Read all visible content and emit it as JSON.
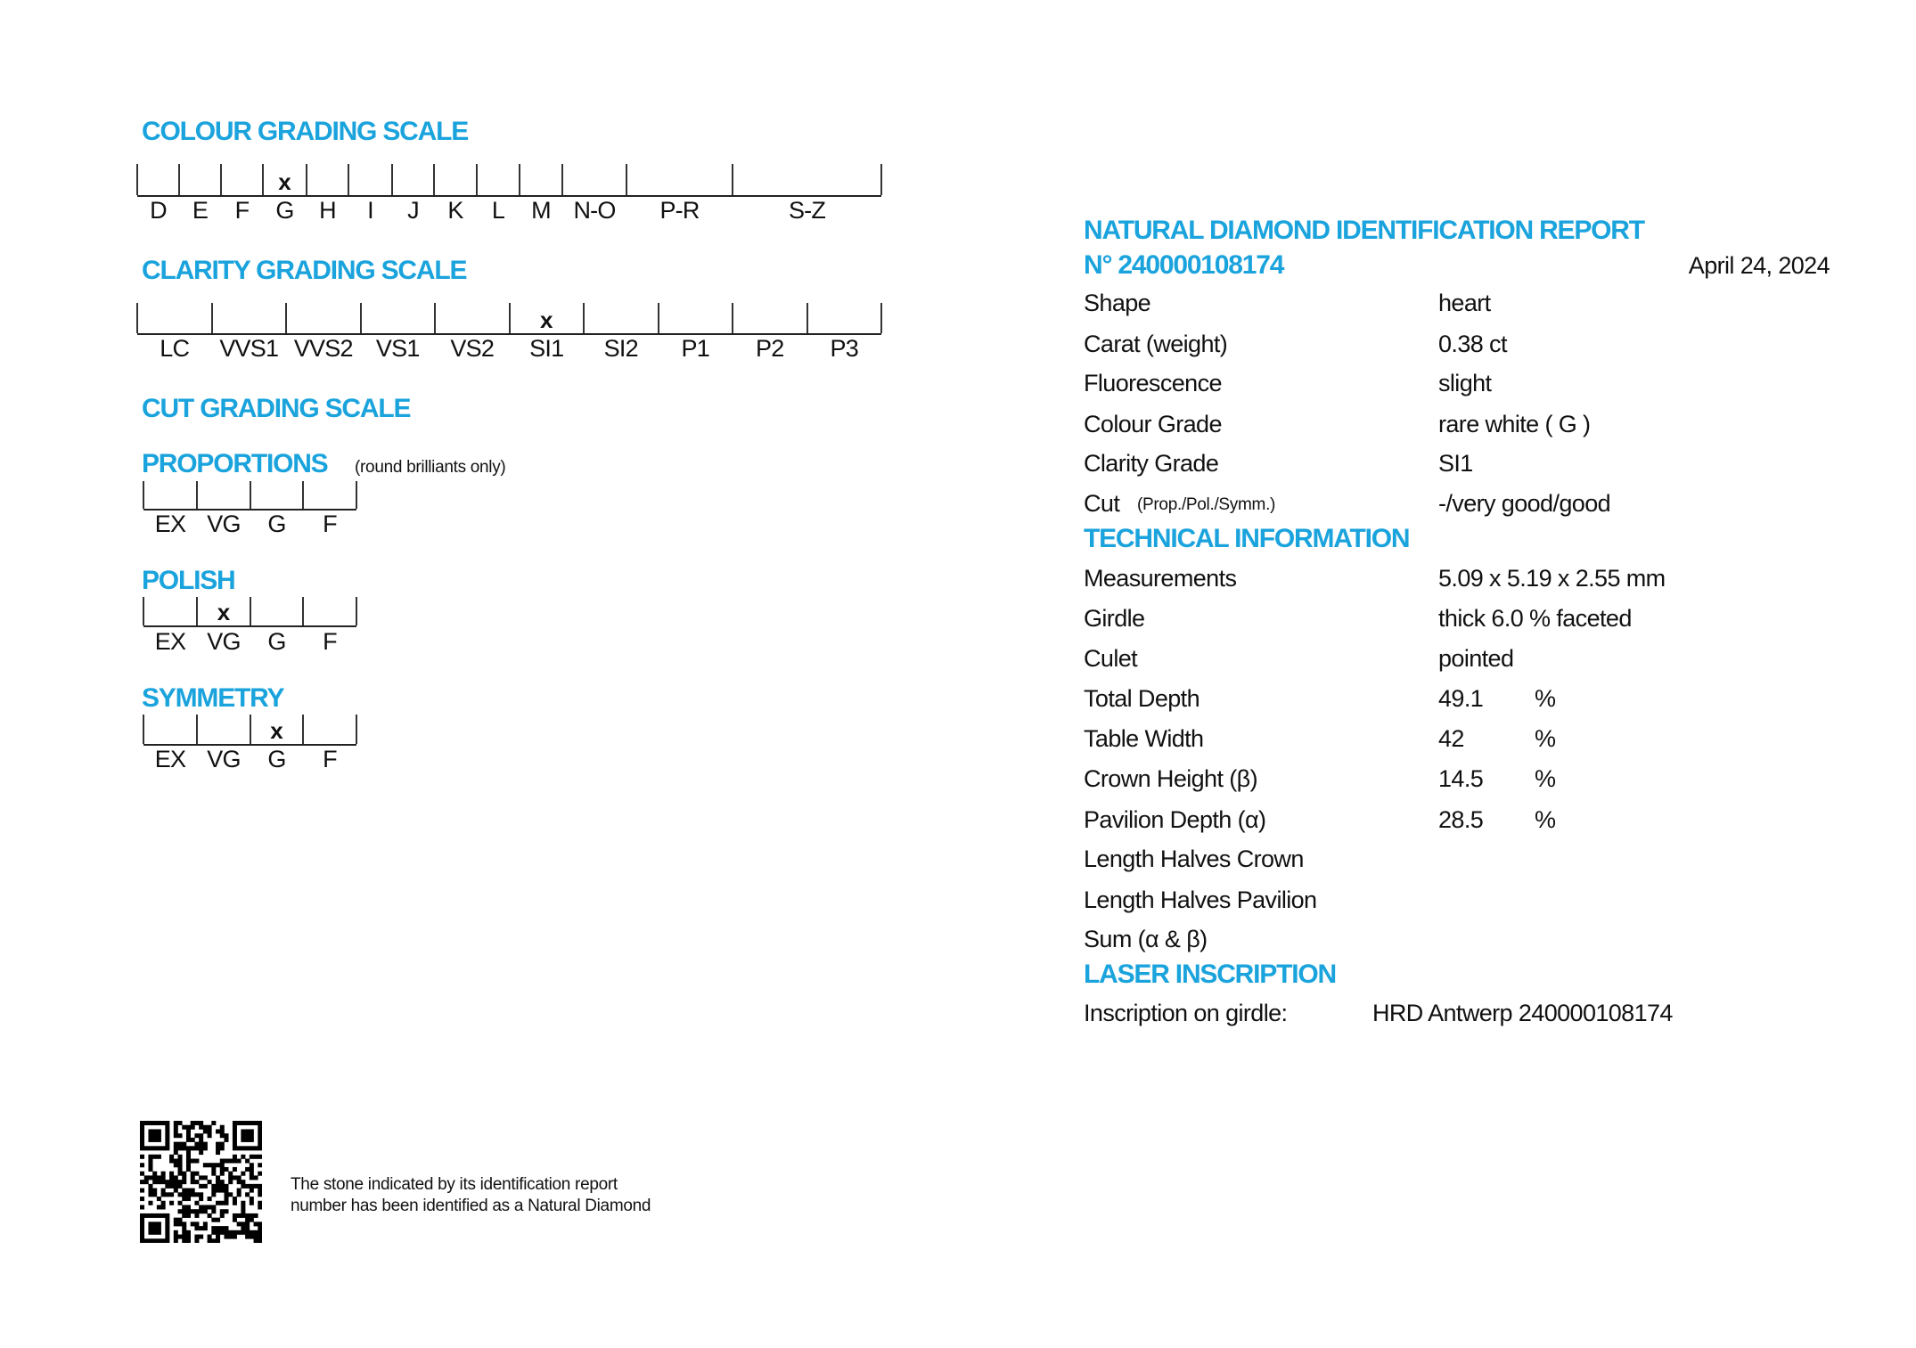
{
  "colours": {
    "accent": "#1aa3dc",
    "text": "#111111"
  },
  "colour_scale": {
    "title": "COLOUR GRADING SCALE",
    "grades": [
      "D",
      "E",
      "F",
      "G",
      "H",
      "I",
      "J",
      "K",
      "L",
      "M",
      "N-O",
      "P-R",
      "S-Z"
    ],
    "marked": "G",
    "mark_symbol": "x"
  },
  "clarity_scale": {
    "title": "CLARITY GRADING SCALE",
    "grades": [
      "LC",
      "VVS1",
      "VVS2",
      "VS1",
      "VS2",
      "SI1",
      "SI2",
      "P1",
      "P2",
      "P3"
    ],
    "marked": "SI1",
    "mark_symbol": "x"
  },
  "cut_scale": {
    "title": "CUT GRADING SCALE",
    "proportions": {
      "title": "PROPORTIONS",
      "note": "(round brilliants only)",
      "grades": [
        "EX",
        "VG",
        "G",
        "F"
      ],
      "marked": null
    },
    "polish": {
      "title": "POLISH",
      "grades": [
        "EX",
        "VG",
        "G",
        "F"
      ],
      "marked": "VG"
    },
    "symmetry": {
      "title": "SYMMETRY",
      "grades": [
        "EX",
        "VG",
        "G",
        "F"
      ],
      "marked": "G"
    }
  },
  "report": {
    "title": "NATURAL DIAMOND IDENTIFICATION REPORT",
    "number": "N° 240000108174",
    "date": "April 24, 2024",
    "rows": [
      {
        "label": "Shape",
        "value": "heart"
      },
      {
        "label": "Carat (weight)",
        "value": "0.38 ct"
      },
      {
        "label": "Fluorescence",
        "value": "slight"
      },
      {
        "label": "Colour Grade",
        "value": "rare white ( G )"
      },
      {
        "label": "Clarity Grade",
        "value": "SI1"
      },
      {
        "label": "Cut",
        "sublabel": "(Prop./Pol./Symm.)",
        "value": "-/very good/good"
      }
    ]
  },
  "technical": {
    "title": "TECHNICAL INFORMATION",
    "rows": [
      {
        "label": "Measurements",
        "value": "5.09 x 5.19 x 2.55 mm",
        "unit": ""
      },
      {
        "label": "Girdle",
        "value": "thick 6.0 % faceted",
        "unit": ""
      },
      {
        "label": "Culet",
        "value": "pointed",
        "unit": ""
      },
      {
        "label": "Total Depth",
        "value": "49.1",
        "unit": "%"
      },
      {
        "label": "Table Width",
        "value": "42",
        "unit": "%"
      },
      {
        "label": "Crown Height (β)",
        "value": "14.5",
        "unit": "%"
      },
      {
        "label": "Pavilion Depth (α)",
        "value": "28.5",
        "unit": "%"
      },
      {
        "label": "Length Halves Crown",
        "value": "",
        "unit": ""
      },
      {
        "label": "Length Halves Pavilion",
        "value": "",
        "unit": ""
      },
      {
        "label": "Sum (α & β)",
        "value": "",
        "unit": ""
      }
    ]
  },
  "laser": {
    "title": "LASER INSCRIPTION",
    "label": "Inscription on girdle:",
    "value": "HRD Antwerp 240000108174"
  },
  "footer": {
    "qr_icon": "qr-code",
    "line1": "The stone indicated by its identification report",
    "line2": "number has been identified as a Natural Diamond"
  }
}
